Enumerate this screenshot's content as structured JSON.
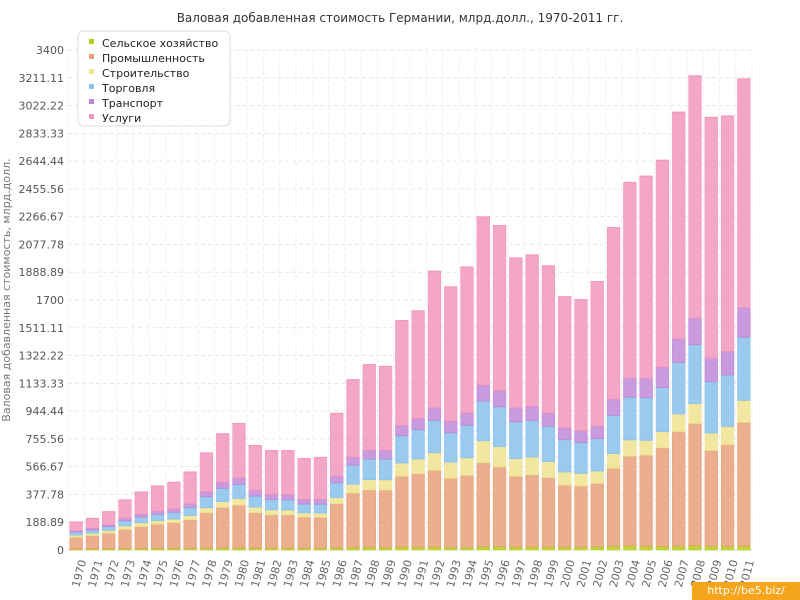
{
  "chart_data": {
    "type": "bar",
    "stacked": true,
    "title": "Валовая добавленная стоимость Германии, млрд.долл., 1970-2011 гг.",
    "xlabel": "",
    "ylabel": "Валовая добавленная стоимость, млрд.долл.",
    "ylim": [
      0,
      3400
    ],
    "yticks": [
      "0",
      "188.89",
      "377.78",
      "566.67",
      "755.56",
      "944.44",
      "1133.33",
      "1322.22",
      "1511.11",
      "1700",
      "1888.89",
      "2077.78",
      "2266.67",
      "2455.56",
      "2644.44",
      "2833.33",
      "3022.22",
      "3211.11",
      "3400"
    ],
    "ytick_values": [
      0,
      188.89,
      377.78,
      566.67,
      755.56,
      944.44,
      1133.33,
      1322.22,
      1511.11,
      1700,
      1888.89,
      2077.78,
      2266.67,
      2455.56,
      2644.44,
      2833.33,
      3022.22,
      3211.11,
      3400
    ],
    "legend_position": "top-left",
    "categories": [
      "1970",
      "1971",
      "1972",
      "1973",
      "1974",
      "1975",
      "1976",
      "1977",
      "1978",
      "1979",
      "1980",
      "1981",
      "1982",
      "1983",
      "1984",
      "1985",
      "1986",
      "1987",
      "1988",
      "1989",
      "1990",
      "1991",
      "1992",
      "1993",
      "1994",
      "1995",
      "1996",
      "1997",
      "1998",
      "1999",
      "2000",
      "2001",
      "2002",
      "2003",
      "2004",
      "2005",
      "2006",
      "2007",
      "2008",
      "2009",
      "2010",
      "2011"
    ],
    "series": [
      {
        "name": "Сельское хозяйство",
        "color": "#b5cc18",
        "values": [
          6,
          7,
          8,
          9,
          9,
          10,
          10,
          11,
          12,
          14,
          15,
          13,
          13,
          13,
          12,
          11,
          14,
          17,
          18,
          17,
          21,
          18,
          21,
          17,
          17,
          22,
          23,
          21,
          21,
          21,
          20,
          20,
          22,
          25,
          28,
          25,
          24,
          25,
          30,
          25,
          25,
          27
        ]
      },
      {
        "name": "Промышленность",
        "color": "#e8a07a",
        "values": [
          80,
          90,
          105,
          130,
          150,
          165,
          175,
          195,
          240,
          275,
          290,
          240,
          225,
          225,
          210,
          210,
          300,
          370,
          390,
          390,
          480,
          500,
          520,
          470,
          490,
          570,
          540,
          480,
          490,
          470,
          420,
          415,
          430,
          530,
          610,
          620,
          670,
          780,
          830,
          650,
          690,
          840
        ]
      },
      {
        "name": "Строительство",
        "color": "#eee38f",
        "values": [
          15,
          17,
          20,
          25,
          26,
          25,
          25,
          28,
          35,
          40,
          45,
          38,
          35,
          33,
          30,
          30,
          42,
          60,
          70,
          70,
          90,
          100,
          120,
          110,
          120,
          150,
          140,
          120,
          120,
          110,
          90,
          85,
          85,
          100,
          110,
          100,
          110,
          120,
          135,
          120,
          125,
          150
        ]
      },
      {
        "name": "Торговля",
        "color": "#88c2ec",
        "values": [
          20,
          22,
          26,
          35,
          38,
          42,
          46,
          55,
          75,
          90,
          95,
          75,
          70,
          70,
          60,
          60,
          100,
          130,
          140,
          140,
          185,
          200,
          220,
          200,
          220,
          270,
          270,
          250,
          250,
          240,
          220,
          210,
          220,
          260,
          290,
          290,
          300,
          350,
          400,
          350,
          350,
          430
        ]
      },
      {
        "name": "Транспорт",
        "color": "#c088d8",
        "values": [
          10,
          11,
          13,
          17,
          19,
          21,
          22,
          25,
          35,
          40,
          45,
          38,
          35,
          35,
          32,
          32,
          45,
          55,
          60,
          60,
          70,
          75,
          85,
          80,
          85,
          110,
          110,
          95,
          95,
          90,
          80,
          80,
          85,
          110,
          130,
          130,
          140,
          160,
          180,
          160,
          160,
          200
        ]
      },
      {
        "name": "Услуги",
        "color": "#f297bd",
        "values": [
          59,
          68,
          88,
          124,
          152,
          172,
          182,
          216,
          263,
          331,
          370,
          306,
          298,
          299,
          277,
          286,
          428,
          526,
          582,
          571,
          714,
          733,
          930,
          912,
          992,
          1143,
          1123,
          1020,
          1030,
          1001,
          892,
          892,
          983,
          1167,
          1331,
          1377,
          1406,
          1542,
          1649,
          1637,
          1601,
          1556
        ]
      }
    ],
    "totals": [
      190,
      215,
      260,
      340,
      394,
      435,
      460,
      530,
      660,
      790,
      860,
      710,
      676,
      675,
      621,
      629,
      929,
      1158,
      1260,
      1248,
      1560,
      1626,
      1896,
      1789,
      1924,
      2265,
      2206,
      1986,
      2006,
      1932,
      1722,
      1702,
      1825,
      2192,
      2499,
      2542,
      2650,
      2977,
      3224,
      2942,
      2951,
      3203
    ]
  },
  "watermark": "http://be5.biz/"
}
